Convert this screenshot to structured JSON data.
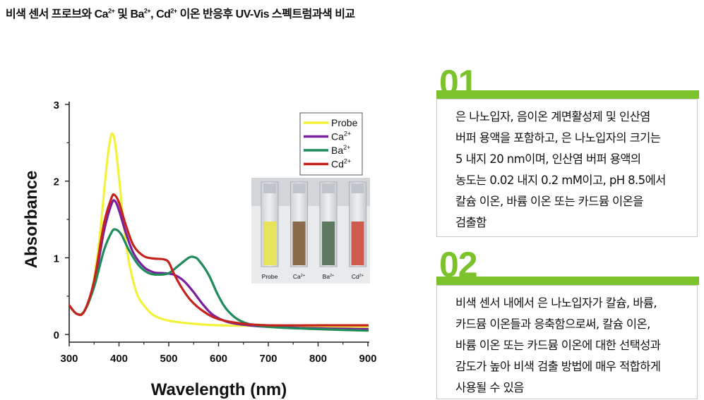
{
  "page_title": {
    "part1": "비색 센서 프로브와 Ca",
    "sup1": "2+",
    "part2": " 및 Ba",
    "sup2": "2+",
    "part3": ", Cd",
    "sup3": "2+",
    "part4": " 이온 반응후 UV-Vis 스펙트럼과색 비교"
  },
  "chart_data": {
    "type": "line",
    "xlabel": "Wavelength (nm)",
    "ylabel": "Absorbance",
    "xlim": [
      300,
      900
    ],
    "ylim": [
      -0.1,
      3.0
    ],
    "xticks": [
      "300",
      "400",
      "500",
      "600",
      "700",
      "800",
      "900"
    ],
    "yticks": [
      "0",
      "1",
      "2",
      "3"
    ],
    "xtick_values": [
      300,
      400,
      500,
      600,
      700,
      800,
      900
    ],
    "ytick_values": [
      0,
      1,
      2,
      3
    ],
    "grid": false,
    "legend_position": "top-right",
    "series": [
      {
        "name": "Probe",
        "label_main": "Probe",
        "label_sup": "",
        "color": "#f2f23a",
        "points": [
          [
            300,
            0.38
          ],
          [
            315,
            0.27
          ],
          [
            330,
            0.3
          ],
          [
            345,
            0.55
          ],
          [
            360,
            1.2
          ],
          [
            372,
            2.0
          ],
          [
            380,
            2.45
          ],
          [
            386,
            2.62
          ],
          [
            392,
            2.5
          ],
          [
            400,
            2.05
          ],
          [
            410,
            1.4
          ],
          [
            420,
            0.95
          ],
          [
            435,
            0.55
          ],
          [
            450,
            0.38
          ],
          [
            470,
            0.25
          ],
          [
            500,
            0.18
          ],
          [
            550,
            0.14
          ],
          [
            600,
            0.12
          ],
          [
            700,
            0.11
          ],
          [
            800,
            0.1
          ],
          [
            900,
            0.1
          ]
        ]
      },
      {
        "name": "Ca2+",
        "label_main": "Ca",
        "label_sup": "2+",
        "color": "#7a1fa0",
        "points": [
          [
            300,
            0.38
          ],
          [
            315,
            0.27
          ],
          [
            330,
            0.3
          ],
          [
            350,
            0.65
          ],
          [
            370,
            1.35
          ],
          [
            385,
            1.7
          ],
          [
            392,
            1.74
          ],
          [
            400,
            1.62
          ],
          [
            415,
            1.3
          ],
          [
            430,
            1.05
          ],
          [
            450,
            0.88
          ],
          [
            470,
            0.81
          ],
          [
            490,
            0.8
          ],
          [
            510,
            0.78
          ],
          [
            530,
            0.7
          ],
          [
            550,
            0.55
          ],
          [
            570,
            0.38
          ],
          [
            590,
            0.25
          ],
          [
            620,
            0.16
          ],
          [
            660,
            0.12
          ],
          [
            700,
            0.1
          ],
          [
            800,
            0.08
          ],
          [
            900,
            0.07
          ]
        ]
      },
      {
        "name": "Ba2+",
        "label_main": "Ba",
        "label_sup": "2+",
        "color": "#1f8a5a",
        "points": [
          [
            300,
            0.38
          ],
          [
            315,
            0.27
          ],
          [
            330,
            0.3
          ],
          [
            350,
            0.62
          ],
          [
            370,
            1.1
          ],
          [
            385,
            1.33
          ],
          [
            393,
            1.37
          ],
          [
            405,
            1.3
          ],
          [
            420,
            1.1
          ],
          [
            440,
            0.9
          ],
          [
            460,
            0.8
          ],
          [
            480,
            0.78
          ],
          [
            500,
            0.8
          ],
          [
            520,
            0.9
          ],
          [
            540,
            1.0
          ],
          [
            550,
            1.01
          ],
          [
            560,
            0.97
          ],
          [
            580,
            0.78
          ],
          [
            600,
            0.5
          ],
          [
            620,
            0.3
          ],
          [
            650,
            0.16
          ],
          [
            700,
            0.1
          ],
          [
            800,
            0.07
          ],
          [
            900,
            0.05
          ]
        ]
      },
      {
        "name": "Cd2+",
        "label_main": "Cd",
        "label_sup": "2+",
        "color": "#c4231c",
        "points": [
          [
            300,
            0.38
          ],
          [
            315,
            0.27
          ],
          [
            330,
            0.3
          ],
          [
            350,
            0.7
          ],
          [
            370,
            1.45
          ],
          [
            385,
            1.78
          ],
          [
            391,
            1.82
          ],
          [
            400,
            1.72
          ],
          [
            415,
            1.4
          ],
          [
            430,
            1.15
          ],
          [
            450,
            1.02
          ],
          [
            470,
            0.99
          ],
          [
            490,
            0.98
          ],
          [
            500,
            0.94
          ],
          [
            510,
            0.8
          ],
          [
            525,
            0.62
          ],
          [
            545,
            0.44
          ],
          [
            570,
            0.3
          ],
          [
            600,
            0.2
          ],
          [
            650,
            0.14
          ],
          [
            700,
            0.12
          ],
          [
            800,
            0.12
          ],
          [
            900,
            0.12
          ]
        ]
      }
    ]
  },
  "inset": {
    "labels": [
      {
        "main": "Probe",
        "sup": ""
      },
      {
        "main": "Ca",
        "sup": "2+"
      },
      {
        "main": "Ba",
        "sup": "2+"
      },
      {
        "main": "Cd",
        "sup": "2+"
      }
    ],
    "cuvette_colors": [
      "#e6e25a",
      "#8a6a48",
      "#5f7860",
      "#cd5b4e"
    ]
  },
  "panels": [
    {
      "number": "01",
      "text": "은 나노입자, 음이온 계면활성제 및 인산염\n버퍼 용액을 포함하고, 은 나노입자의 크기는\n5 내지 20 nm이며, 인산염 버퍼 용액의\n농도는 0.02 내지 0.2 mM이고, pH 8.5에서\n칼슘 이온, 바륨 이온 또는 카드뮴 이온을\n검출함"
    },
    {
      "number": "02",
      "text": "비색 센서 내에서 은 나노입자가 칼슘, 바륨,\n카드뮴 이온들과 응축함으로써, 칼슘 이온,\n바륨 이온 또는 카드뮴 이온에 대한 선택성과\n감도가 높아 비색 검출 방법에 매우 적합하게\n사용될 수 있음"
    }
  ],
  "colors": {
    "accent": "#7cc22a"
  }
}
